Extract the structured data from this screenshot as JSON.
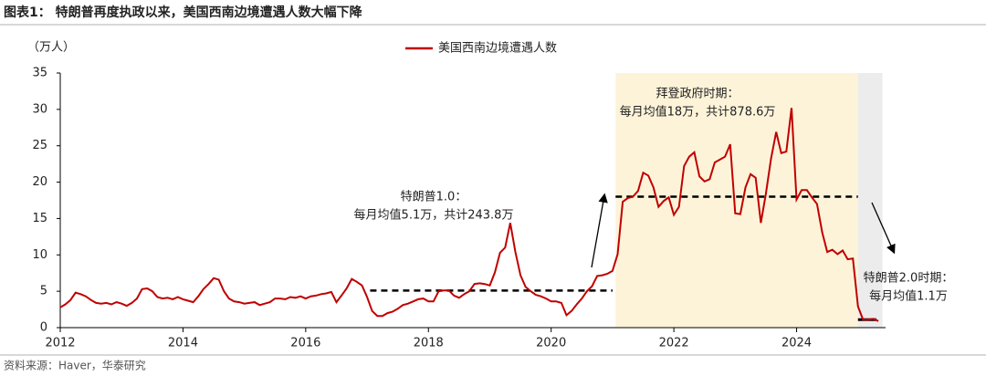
{
  "chart_data": {
    "type": "line",
    "title": "图表1： 特朗普再度执政以来，美国西南边境遭遇人数大幅下降",
    "y_unit": "（万人）",
    "source": "资料来源：Haver，华泰研究",
    "xlim": [
      2012,
      2025.45
    ],
    "xticks": [
      2012,
      2014,
      2016,
      2018,
      2020,
      2022,
      2024
    ],
    "ylim": [
      0,
      35
    ],
    "yticks": [
      0,
      5,
      10,
      15,
      20,
      25,
      30,
      35
    ],
    "legend": "top",
    "x": [
      2012,
      2012.083,
      2012.167,
      2012.25,
      2012.333,
      2012.417,
      2012.5,
      2012.583,
      2012.667,
      2012.75,
      2012.833,
      2012.917,
      2013,
      2013.083,
      2013.167,
      2013.25,
      2013.333,
      2013.417,
      2013.5,
      2013.583,
      2013.667,
      2013.75,
      2013.833,
      2013.917,
      2014,
      2014.083,
      2014.167,
      2014.25,
      2014.333,
      2014.417,
      2014.5,
      2014.583,
      2014.667,
      2014.75,
      2014.833,
      2014.917,
      2015,
      2015.083,
      2015.167,
      2015.25,
      2015.333,
      2015.417,
      2015.5,
      2015.583,
      2015.667,
      2015.75,
      2015.833,
      2015.917,
      2016,
      2016.083,
      2016.167,
      2016.25,
      2016.333,
      2016.417,
      2016.5,
      2016.583,
      2016.667,
      2016.75,
      2016.833,
      2016.917,
      2017,
      2017.083,
      2017.167,
      2017.25,
      2017.333,
      2017.417,
      2017.5,
      2017.583,
      2017.667,
      2017.75,
      2017.833,
      2017.917,
      2018,
      2018.083,
      2018.167,
      2018.25,
      2018.333,
      2018.417,
      2018.5,
      2018.583,
      2018.667,
      2018.75,
      2018.833,
      2018.917,
      2019,
      2019.083,
      2019.167,
      2019.25,
      2019.333,
      2019.417,
      2019.5,
      2019.583,
      2019.667,
      2019.75,
      2019.833,
      2019.917,
      2020,
      2020.083,
      2020.167,
      2020.25,
      2020.333,
      2020.417,
      2020.5,
      2020.583,
      2020.667,
      2020.75,
      2020.833,
      2020.917,
      2021,
      2021.083,
      2021.167,
      2021.25,
      2021.333,
      2021.417,
      2021.5,
      2021.583,
      2021.667,
      2021.75,
      2021.833,
      2021.917,
      2022,
      2022.083,
      2022.167,
      2022.25,
      2022.333,
      2022.417,
      2022.5,
      2022.583,
      2022.667,
      2022.75,
      2022.833,
      2022.917,
      2023,
      2023.083,
      2023.167,
      2023.25,
      2023.333,
      2023.417,
      2023.5,
      2023.583,
      2023.667,
      2023.75,
      2023.833,
      2023.917,
      2024,
      2024.083,
      2024.167,
      2024.25,
      2024.333,
      2024.417,
      2024.5,
      2024.583,
      2024.667,
      2024.75,
      2024.833,
      2024.917,
      2025,
      2025.083,
      2025.167,
      2025.25,
      2025.333
    ],
    "series": [
      {
        "name": "美国西南边境遭遇人数",
        "color": "#c00000",
        "values": [
          2.8,
          3.2,
          3.8,
          4.8,
          4.6,
          4.3,
          3.8,
          3.4,
          3.3,
          3.4,
          3.2,
          3.5,
          3.3,
          3.0,
          3.4,
          4.0,
          5.3,
          5.4,
          5.0,
          4.2,
          4.0,
          4.1,
          3.9,
          4.2,
          3.9,
          3.7,
          3.5,
          4.3,
          5.3,
          6.0,
          6.8,
          6.6,
          5.0,
          4.0,
          3.6,
          3.5,
          3.3,
          3.4,
          3.5,
          3.1,
          3.3,
          3.5,
          4.0,
          4.0,
          3.9,
          4.2,
          4.1,
          4.3,
          4.0,
          4.3,
          4.4,
          4.6,
          4.7,
          4.9,
          3.5,
          4.4,
          5.4,
          6.7,
          6.3,
          5.8,
          4.2,
          2.3,
          1.6,
          1.6,
          2.0,
          2.2,
          2.6,
          3.1,
          3.3,
          3.6,
          3.9,
          4.0,
          3.6,
          3.6,
          5.0,
          5.1,
          5.1,
          4.4,
          4.1,
          4.6,
          5.0,
          6.0,
          6.1,
          6.0,
          5.8,
          7.6,
          10.3,
          11.0,
          14.4,
          10.4,
          7.2,
          5.6,
          5.0,
          4.5,
          4.3,
          4.0,
          3.6,
          3.6,
          3.4,
          1.7,
          2.3,
          3.2,
          4.0,
          5.0,
          5.7,
          7.1,
          7.2,
          7.4,
          7.8,
          10.1,
          17.3,
          17.8,
          18.0,
          18.8,
          21.3,
          20.9,
          19.3,
          16.6,
          17.4,
          17.9,
          15.5,
          16.6,
          22.2,
          23.5,
          24.1,
          20.8,
          20.1,
          20.4,
          22.7,
          23.1,
          23.5,
          25.2,
          15.7,
          15.6,
          19.3,
          21.1,
          20.6,
          14.4,
          18.4,
          23.2,
          26.9,
          24.0,
          24.2,
          30.2,
          17.6,
          18.9,
          18.9,
          17.9,
          17.0,
          13.1,
          10.4,
          10.7,
          10.1,
          10.6,
          9.4,
          9.5,
          2.9,
          1.1,
          1.1,
          1.2,
          0.9
        ]
      }
    ],
    "shaded_regions": [
      {
        "from": 2021.05,
        "to": 2025,
        "color": "#fdf3d9"
      },
      {
        "from": 2025,
        "to": 2025.4,
        "color": "#ececec"
      }
    ],
    "reference_lines": [
      {
        "value": 5.1,
        "from": 2017.05,
        "to": 2021,
        "style": "dashed"
      },
      {
        "value": 18,
        "from": 2021.05,
        "to": 2025,
        "style": "dashed"
      },
      {
        "value": 1.1,
        "from": 2025.0,
        "to": 2025.3,
        "style": "solid"
      }
    ],
    "annotations": [
      {
        "lines": [
          "特朗普1.0：",
          "每月均值5.1万，共计243.8万"
        ]
      },
      {
        "lines": [
          "拜登政府时期：",
          "每月均值18万，共计878.6万"
        ]
      },
      {
        "lines": [
          "特朗普2.0时期：",
          "每月均值1.1万"
        ]
      }
    ]
  }
}
